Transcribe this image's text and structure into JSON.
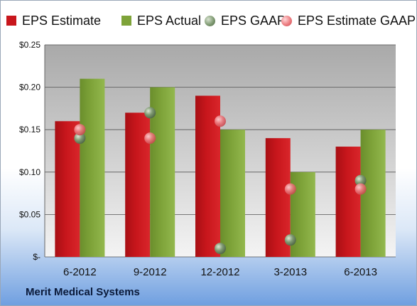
{
  "company": "Merit Medical Systems",
  "colors": {
    "eps_estimate": "#c8161c",
    "eps_actual": "#7ea339",
    "eps_gaap": "#7f9a72",
    "eps_estimate_gaap": "#ec7c80"
  },
  "chart_data": {
    "type": "bar",
    "categories": [
      "6-2012",
      "9-2012",
      "12-2012",
      "3-2013",
      "6-2013"
    ],
    "series": [
      {
        "name": "EPS Estimate",
        "kind": "bar",
        "values": [
          0.16,
          0.17,
          0.19,
          0.14,
          0.13
        ]
      },
      {
        "name": "EPS Actual",
        "kind": "bar",
        "values": [
          0.21,
          0.2,
          0.15,
          0.1,
          0.15
        ]
      },
      {
        "name": "EPS GAAP",
        "kind": "marker",
        "values": [
          0.14,
          0.17,
          0.01,
          0.02,
          0.09
        ]
      },
      {
        "name": "EPS Estimate GAAP",
        "kind": "marker",
        "values": [
          0.15,
          0.14,
          0.16,
          0.08,
          0.08
        ]
      }
    ],
    "ylim": [
      0,
      0.25
    ],
    "yticks": [
      0,
      0.05,
      0.1,
      0.15,
      0.2,
      0.25
    ],
    "ytick_labels": [
      "$-",
      "$0.05",
      "$0.10",
      "$0.15",
      "$0.20",
      "$0.25"
    ],
    "legend_position": "top",
    "grid": true
  }
}
